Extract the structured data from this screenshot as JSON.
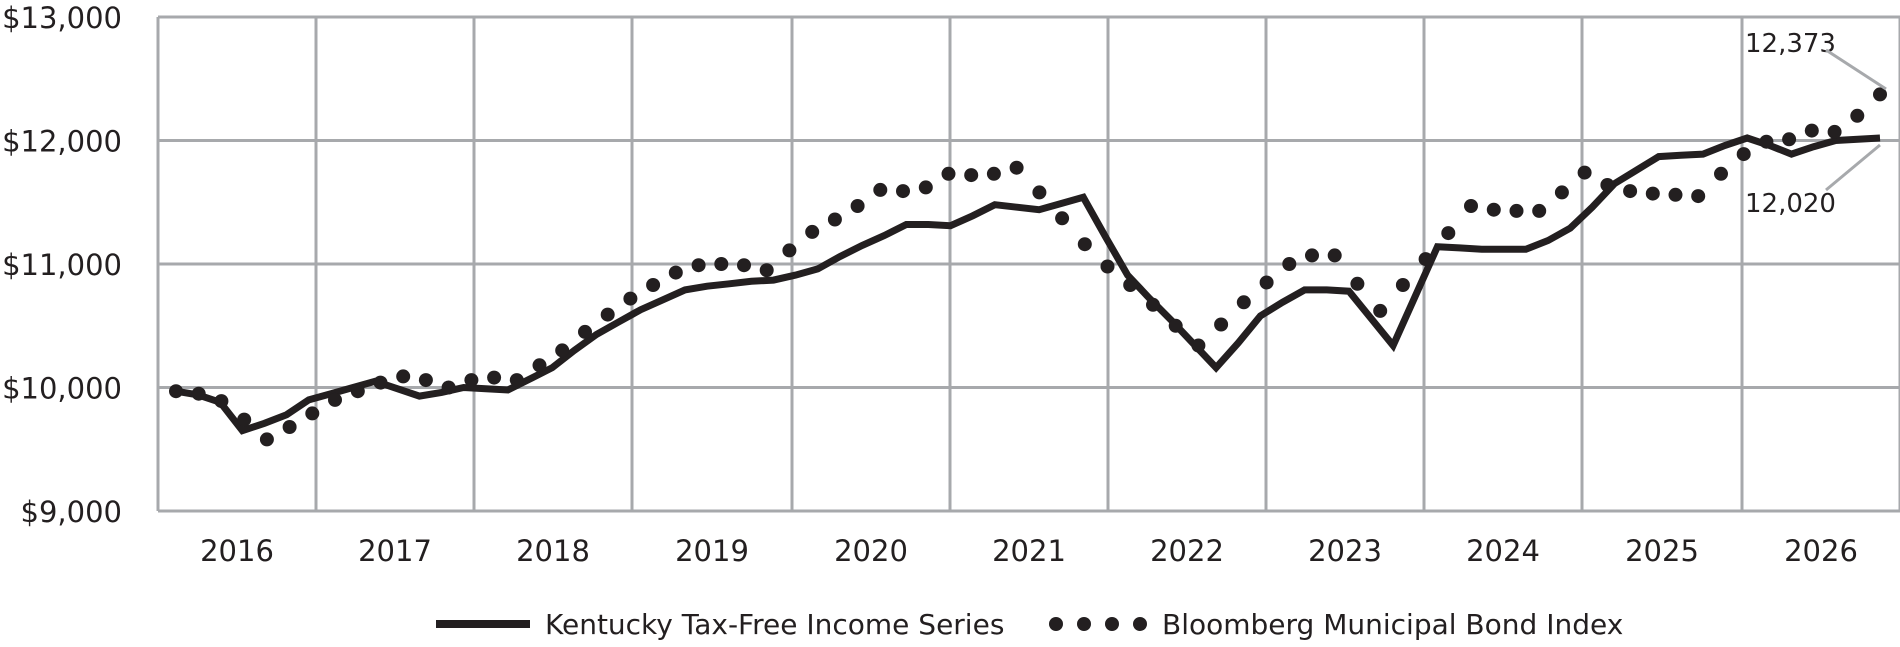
{
  "chart_data": {
    "type": "line",
    "yticks": [
      "$9,000",
      "$10,000",
      "$11,000",
      "$12,000",
      "$13,000"
    ],
    "ylim": [
      9000,
      13000
    ],
    "xticks": [
      "2016",
      "2017",
      "2018",
      "2019",
      "2020",
      "2021",
      "2022",
      "2023",
      "2024",
      "2025",
      "2026"
    ],
    "grid": true,
    "legend_position": "bottom",
    "series": [
      {
        "name": "Kentucky Tax-Free Income Series",
        "style": "solid",
        "color": "#231f20",
        "values": [
          9970,
          9940,
          9880,
          9650,
          9710,
          9780,
          9900,
          9950,
          10000,
          10050,
          9990,
          9930,
          9960,
          10000,
          9990,
          9980,
          10070,
          10160,
          10300,
          10430,
          10530,
          10630,
          10710,
          10790,
          10820,
          10840,
          10860,
          10870,
          10910,
          10960,
          11060,
          11150,
          11230,
          11320,
          11320,
          11310,
          11390,
          11480,
          11460,
          11440,
          11490,
          11540,
          11220,
          10910,
          10720,
          10540,
          10350,
          10160,
          10360,
          10580,
          10690,
          10790,
          10790,
          10780,
          10560,
          10340,
          10740,
          11140,
          11130,
          11120,
          11120,
          11120,
          11190,
          11290,
          11460,
          11650,
          11760,
          11870,
          11880,
          11890,
          11960,
          12020,
          11960,
          11890,
          11950,
          12000,
          12010,
          12020
        ]
      },
      {
        "name": "Bloomberg Municipal Bond Index",
        "style": "dotted",
        "color": "#231f20",
        "values": [
          9970,
          9950,
          9890,
          9740,
          9580,
          9680,
          9790,
          9900,
          9970,
          10040,
          10090,
          10060,
          10000,
          10060,
          10080,
          10060,
          10180,
          10300,
          10450,
          10590,
          10720,
          10830,
          10930,
          10990,
          11000,
          10990,
          10950,
          11110,
          11260,
          11360,
          11470,
          11600,
          11590,
          11620,
          11730,
          11720,
          11730,
          11780,
          11580,
          11370,
          11160,
          10980,
          10830,
          10670,
          10500,
          10340,
          10510,
          10690,
          10850,
          11000,
          11070,
          11070,
          10840,
          10620,
          10830,
          11040,
          11250,
          11470,
          11440,
          11430,
          11430,
          11580,
          11740,
          11640,
          11590,
          11570,
          11560,
          11550,
          11730,
          11890,
          11990,
          12010,
          12080,
          12070,
          12200,
          12373
        ]
      }
    ],
    "annotations": [
      "12,373",
      "12,020"
    ]
  }
}
